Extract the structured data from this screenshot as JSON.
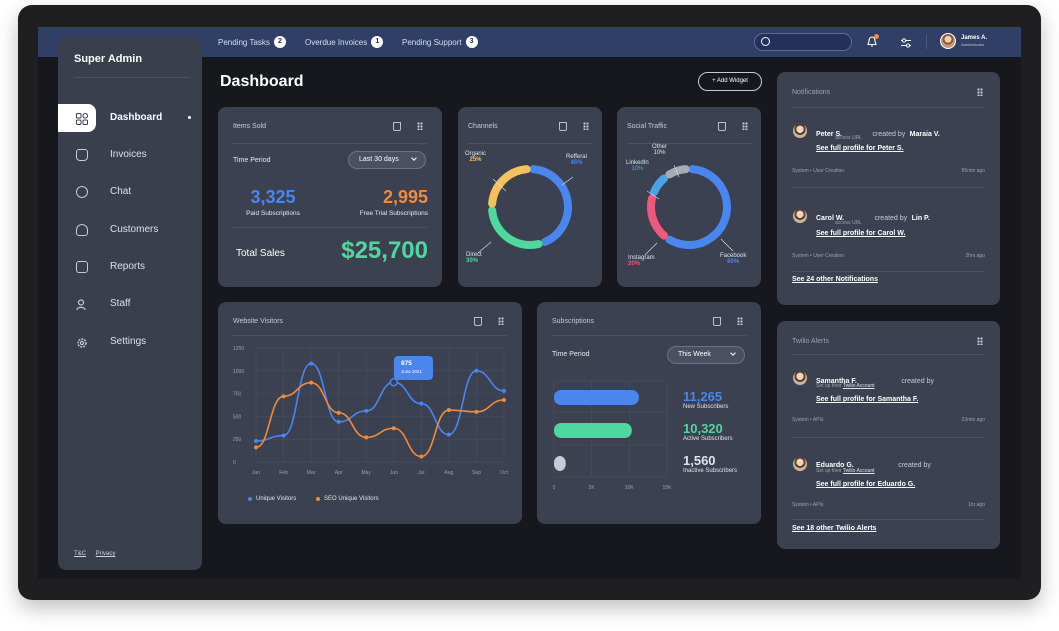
{
  "topbar": {
    "pending": [
      {
        "label": "Pending Tasks",
        "count": "2"
      },
      {
        "label": "Overdue Invoices",
        "count": "1"
      },
      {
        "label": "Pending Support",
        "count": "3"
      }
    ],
    "user": {
      "name": "James A.",
      "role": "Administrator"
    }
  },
  "sidebar": {
    "brand": "Super Admin",
    "items": [
      {
        "label": "Dashboard",
        "active": true
      },
      {
        "label": "Invoices"
      },
      {
        "label": "Chat"
      },
      {
        "label": "Customers"
      },
      {
        "label": "Reports"
      },
      {
        "label": "Staff"
      },
      {
        "label": "Settings"
      }
    ],
    "footer": {
      "tc": "T&C",
      "privacy": "Privacy"
    }
  },
  "page": {
    "title": "Dashboard",
    "add_widget": "+ Add Widget"
  },
  "items_sold": {
    "title": "Items Sold",
    "period_label": "Time Period",
    "period_value": "Last 30 days",
    "paid_value": "3,325",
    "paid_label": "Paid Subscriptions",
    "trial_value": "2,995",
    "trial_label": "Free Trial Subscriptions",
    "total_label": "Total Sales",
    "total_value": "$25,700"
  },
  "channels": {
    "title": "Channels",
    "slices": [
      {
        "name": "Organic",
        "pct": "25%",
        "value": 25,
        "color": "#f5c15b"
      },
      {
        "name": "Refferal",
        "pct": "45%",
        "value": 45,
        "color": "#4a86f0"
      },
      {
        "name": "Direct",
        "pct": "30%",
        "value": 30,
        "color": "#4fd89d"
      }
    ]
  },
  "social": {
    "title": "Social Traffic",
    "slices": [
      {
        "name": "Facebook",
        "pct": "60%",
        "value": 60,
        "color": "#4a86f0"
      },
      {
        "name": "Instagram",
        "pct": "20%",
        "value": 20,
        "color": "#f0577e"
      },
      {
        "name": "LinkedIn",
        "pct": "10%",
        "value": 10,
        "color": "#4aa3e8"
      },
      {
        "name": "Other",
        "pct": "10%",
        "value": 10,
        "color": "#a6abb6"
      }
    ]
  },
  "visitors": {
    "title": "Website Visitors",
    "tooltip": {
      "value": "875",
      "date": "June 2021"
    },
    "legend": [
      "Unique Visitors",
      "SEO Unique Visitors"
    ]
  },
  "chart_data": {
    "type": "line",
    "categories": [
      "Jan",
      "Feb",
      "Mar",
      "Apr",
      "May",
      "Jun",
      "Jul",
      "Aug",
      "Sep",
      "Oct"
    ],
    "yticks": [
      0,
      250,
      500,
      750,
      1000,
      1250
    ],
    "ylim": [
      0,
      1250
    ],
    "series": [
      {
        "name": "Unique Visitors",
        "color": "#4a86f0",
        "values": [
          230,
          290,
          1080,
          440,
          560,
          875,
          640,
          300,
          1000,
          780
        ]
      },
      {
        "name": "SEO Unique Visitors",
        "color": "#f08a3c",
        "values": [
          160,
          720,
          870,
          540,
          270,
          370,
          60,
          570,
          550,
          680
        ]
      }
    ]
  },
  "subscriptions": {
    "title": "Subscriptions",
    "period_label": "Time Period",
    "period_value": "This Week",
    "axis": [
      "0",
      "5K",
      "10K",
      "15K"
    ],
    "bars": [
      {
        "value": "11,265",
        "label": "New Subscribers",
        "amount": 11265,
        "color": "#4a86f0"
      },
      {
        "value": "10,320",
        "label": "Active Subscribers",
        "amount": 10320,
        "color": "#4fd89d"
      },
      {
        "value": "1,560",
        "label": "Inactive Subscribers",
        "amount": 1560,
        "color": "#c7cbd3"
      }
    ]
  },
  "notifications": {
    "title": "Notifications",
    "items": [
      {
        "name": "Peter S.",
        "mid": "created by",
        "by": "Maraia V.",
        "sub": "access URL",
        "link": "See full profile for Peter S.",
        "meta": "System  •  User Creation",
        "time": "55min ago"
      },
      {
        "name": "Carol W.",
        "mid": "created by",
        "by": "Lin P.",
        "sub": "access URL",
        "link": "See full profile for Carol W.",
        "meta": "System  •  User Creation",
        "time": "2hrs ago"
      }
    ],
    "more": "See 24 other Notifications"
  },
  "twilio": {
    "title": "Twilio Alerts",
    "items": [
      {
        "name": "Samantha F.",
        "mid": "created by",
        "sub_pre": "Set up their",
        "sub_link": "Twilio Account",
        "link": "See full profile for Samantha F.",
        "meta": "System  •  APIs",
        "time": "23min ago"
      },
      {
        "name": "Eduardo G.",
        "mid": "created by",
        "sub_pre": "Set up their",
        "sub_link": "Twilio Account",
        "link": "See full profile for Eduardo G.",
        "meta": "System  •  APIs",
        "time": "1hr ago"
      }
    ],
    "more": "See 18 other Twilio Alerts"
  }
}
